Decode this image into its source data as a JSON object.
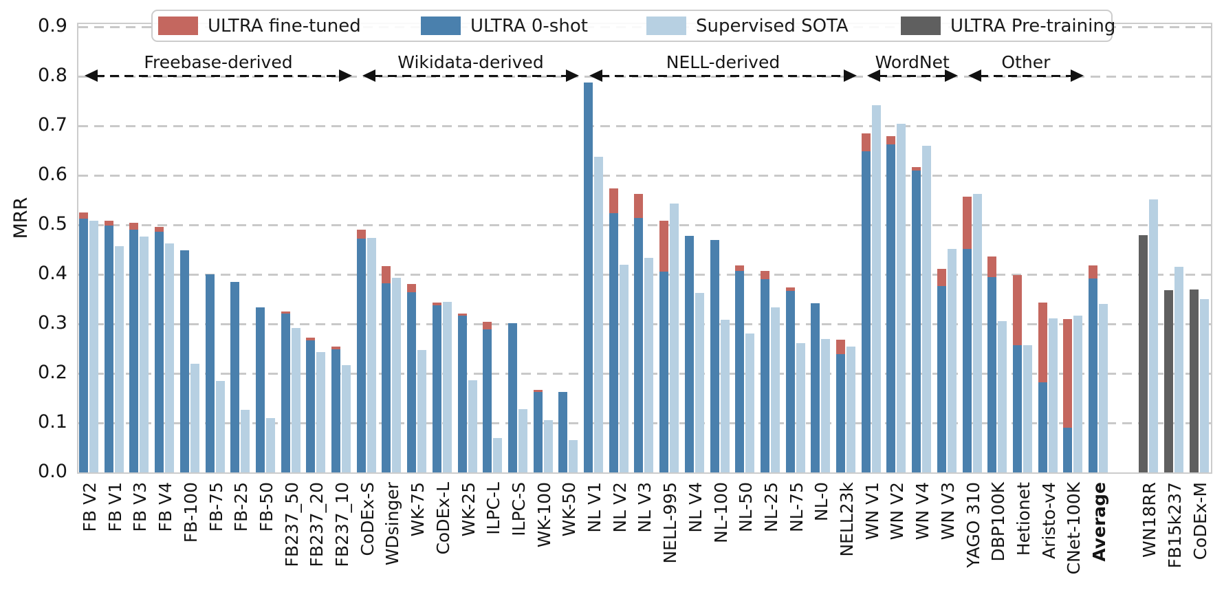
{
  "chart_data": {
    "type": "bar",
    "title": "",
    "ylabel": "MRR",
    "ylim": [
      0.0,
      0.91
    ],
    "yticks": [
      0.0,
      0.1,
      0.2,
      0.3,
      0.4,
      0.5,
      0.6,
      0.7,
      0.8,
      0.9
    ],
    "grid": "horizontal-dashed",
    "legend_position": "top",
    "legend": [
      {
        "label": "ULTRA fine-tuned",
        "series": "fine_tuned"
      },
      {
        "label": "ULTRA 0-shot",
        "series": "zero_shot"
      },
      {
        "label": "Supervised SOTA",
        "series": "sota"
      },
      {
        "label": "ULTRA Pre-training",
        "series": "pretraining"
      }
    ],
    "colors": {
      "fine_tuned": "#C4675F",
      "zero_shot": "#4A80AD",
      "sota": "#B7D0E2",
      "pretraining": "#5F5F5F",
      "grid": "#C9C9C9",
      "spine": "#CCCCCC",
      "text": "#151515"
    },
    "groups": [
      {
        "label": "Freebase-derived",
        "from": "FB V2",
        "to": "FB237_10"
      },
      {
        "label": "Wikidata-derived",
        "from": "CoDEx-S",
        "to": "WK-50"
      },
      {
        "label": "NELL-derived",
        "from": "NL V1",
        "to": "NELL23k"
      },
      {
        "label": "WordNet",
        "from": "WN V1",
        "to": "WN V3"
      },
      {
        "label": "Other",
        "from": "YAGO 310",
        "to": "CNet-100K"
      }
    ],
    "datasets": [
      {
        "label": "FB V2",
        "zero_shot": 0.512,
        "fine_tuned": 0.525,
        "sota": 0.508
      },
      {
        "label": "FB V1",
        "zero_shot": 0.498,
        "fine_tuned": 0.509,
        "sota": 0.457
      },
      {
        "label": "FB V3",
        "zero_shot": 0.49,
        "fine_tuned": 0.504,
        "sota": 0.476
      },
      {
        "label": "FB V4",
        "zero_shot": 0.486,
        "fine_tuned": 0.496,
        "sota": 0.462
      },
      {
        "label": "FB-100",
        "zero_shot": 0.448,
        "fine_tuned": null,
        "sota": 0.22
      },
      {
        "label": "FB-75",
        "zero_shot": 0.4,
        "fine_tuned": null,
        "sota": 0.185
      },
      {
        "label": "FB-25",
        "zero_shot": 0.385,
        "fine_tuned": null,
        "sota": 0.127
      },
      {
        "label": "FB-50",
        "zero_shot": 0.334,
        "fine_tuned": null,
        "sota": 0.11
      },
      {
        "label": "FB237_50",
        "zero_shot": 0.321,
        "fine_tuned": 0.325,
        "sota": 0.291
      },
      {
        "label": "FB237_20",
        "zero_shot": 0.267,
        "fine_tuned": 0.272,
        "sota": 0.243
      },
      {
        "label": "FB237_10",
        "zero_shot": 0.248,
        "fine_tuned": 0.254,
        "sota": 0.217
      },
      {
        "label": "CoDEx-S",
        "zero_shot": 0.472,
        "fine_tuned": 0.49,
        "sota": 0.473
      },
      {
        "label": "WDsinger",
        "zero_shot": 0.382,
        "fine_tuned": 0.417,
        "sota": 0.393
      },
      {
        "label": "WK-75",
        "zero_shot": 0.364,
        "fine_tuned": 0.38,
        "sota": 0.247
      },
      {
        "label": "CoDEx-L",
        "zero_shot": 0.338,
        "fine_tuned": 0.343,
        "sota": 0.345
      },
      {
        "label": "WK-25",
        "zero_shot": 0.316,
        "fine_tuned": 0.321,
        "sota": 0.186
      },
      {
        "label": "ILPC-L",
        "zero_shot": 0.289,
        "fine_tuned": 0.304,
        "sota": 0.07
      },
      {
        "label": "ILPC-S",
        "zero_shot": 0.302,
        "fine_tuned": null,
        "sota": 0.128
      },
      {
        "label": "WK-100",
        "zero_shot": 0.162,
        "fine_tuned": 0.167,
        "sota": 0.105
      },
      {
        "label": "WK-50",
        "zero_shot": 0.163,
        "fine_tuned": null,
        "sota": 0.065
      },
      {
        "label": "NL V1",
        "zero_shot": 0.787,
        "fine_tuned": null,
        "sota": 0.637
      },
      {
        "label": "NL V2",
        "zero_shot": 0.524,
        "fine_tuned": 0.574,
        "sota": 0.419
      },
      {
        "label": "NL V3",
        "zero_shot": 0.514,
        "fine_tuned": 0.563,
        "sota": 0.434
      },
      {
        "label": "NELL-995",
        "zero_shot": 0.406,
        "fine_tuned": 0.509,
        "sota": 0.543
      },
      {
        "label": "NL V4",
        "zero_shot": 0.478,
        "fine_tuned": null,
        "sota": 0.362
      },
      {
        "label": "NL-100",
        "zero_shot": 0.47,
        "fine_tuned": null,
        "sota": 0.309
      },
      {
        "label": "NL-50",
        "zero_shot": 0.407,
        "fine_tuned": 0.418,
        "sota": 0.281
      },
      {
        "label": "NL-25",
        "zero_shot": 0.39,
        "fine_tuned": 0.407,
        "sota": 0.334
      },
      {
        "label": "NL-75",
        "zero_shot": 0.366,
        "fine_tuned": 0.373,
        "sota": 0.261
      },
      {
        "label": "NL-0",
        "zero_shot": 0.342,
        "fine_tuned": null,
        "sota": 0.269
      },
      {
        "label": "NELL23k",
        "zero_shot": 0.239,
        "fine_tuned": 0.268,
        "sota": 0.254
      },
      {
        "label": "WN V1",
        "zero_shot": 0.648,
        "fine_tuned": 0.685,
        "sota": 0.741
      },
      {
        "label": "WN V2",
        "zero_shot": 0.663,
        "fine_tuned": 0.679,
        "sota": 0.704
      },
      {
        "label": "WN V4",
        "zero_shot": 0.61,
        "fine_tuned": 0.616,
        "sota": 0.66
      },
      {
        "label": "WN V3",
        "zero_shot": 0.376,
        "fine_tuned": 0.411,
        "sota": 0.452
      },
      {
        "label": "YAGO 310",
        "zero_shot": 0.451,
        "fine_tuned": 0.557,
        "sota": 0.563
      },
      {
        "label": "DBP100K",
        "zero_shot": 0.394,
        "fine_tuned": 0.436,
        "sota": 0.306
      },
      {
        "label": "Hetionet",
        "zero_shot": 0.257,
        "fine_tuned": 0.399,
        "sota": 0.257
      },
      {
        "label": "Aristo-v4",
        "zero_shot": 0.182,
        "fine_tuned": 0.343,
        "sota": 0.311
      },
      {
        "label": "CNet-100K",
        "zero_shot": 0.09,
        "fine_tuned": 0.31,
        "sota": 0.316
      },
      {
        "label": "Average",
        "zero_shot": 0.392,
        "fine_tuned": 0.418,
        "sota": 0.34,
        "bold": true
      }
    ],
    "pretraining_datasets": [
      {
        "label": "WN18RR",
        "pretraining": 0.479,
        "sota": 0.551
      },
      {
        "label": "FB15k237",
        "pretraining": 0.368,
        "sota": 0.415
      },
      {
        "label": "CoDEx-M",
        "pretraining": 0.37,
        "sota": 0.35
      }
    ]
  }
}
